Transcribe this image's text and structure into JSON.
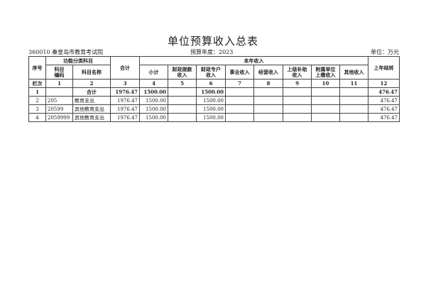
{
  "title": "单位预算收入总表",
  "org": "360010 秦皇岛市教育考试院",
  "budget_year": "预算年度：2023",
  "unit": "单位：万元",
  "headers": {
    "seq": "序号",
    "func": "功能分类科目",
    "code": "科目\n编码",
    "name": "科目名称",
    "total": "合计",
    "current": "本年收入",
    "subtotal": "小计",
    "fiscal_alloc": "财政拨款\n收入",
    "fiscal_special": "财政专户\n收入",
    "business": "事业收入",
    "operating": "经营收入",
    "superior": "上级补助\n收入",
    "affiliated": "附属单位\n上缴收入",
    "other": "其他收入",
    "carryover": "上年结转"
  },
  "column_numbers": [
    "栏次",
    "1",
    "2",
    "3",
    "4",
    "5",
    "6",
    "7",
    "8",
    "9",
    "10",
    "11",
    "12"
  ],
  "rows": [
    [
      "1",
      "",
      "合计",
      "1976.47",
      "1500.00",
      "",
      "1500.00",
      "",
      "",
      "",
      "",
      "",
      "476.47"
    ],
    [
      "2",
      "205",
      "教育支出",
      "1976.47",
      "1500.00",
      "",
      "1500.00",
      "",
      "",
      "",
      "",
      "",
      "476.47"
    ],
    [
      "3",
      "20599",
      "其他教育支出",
      "1976.47",
      "1500.00",
      "",
      "1500.00",
      "",
      "",
      "",
      "",
      "",
      "476.47"
    ],
    [
      "4",
      "2059999",
      "其他教育支出",
      "1976.47",
      "1500.00",
      "",
      "1500.00",
      "",
      "",
      "",
      "",
      "",
      "476.47"
    ]
  ]
}
